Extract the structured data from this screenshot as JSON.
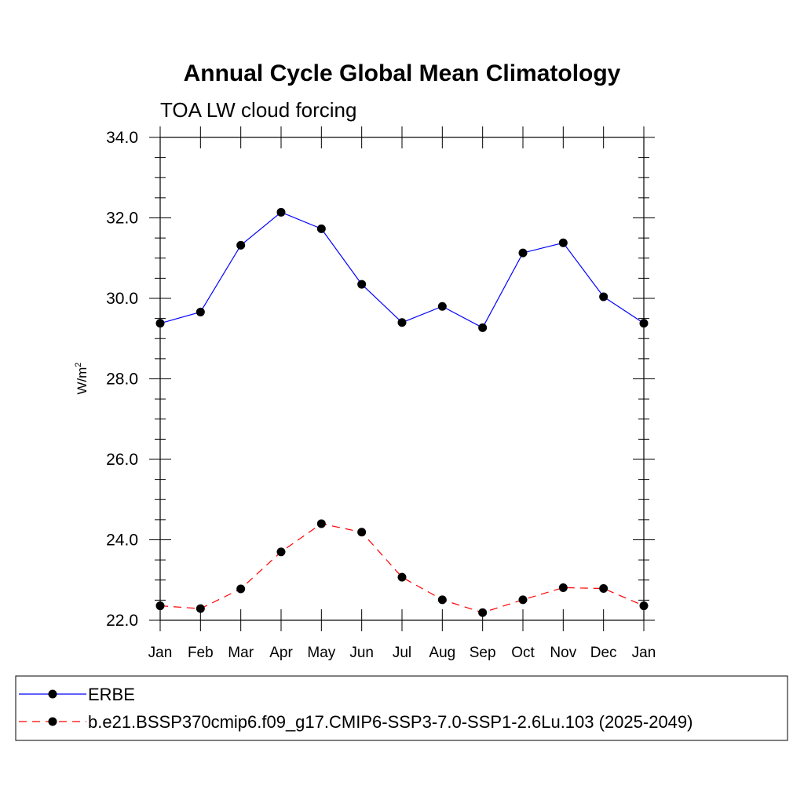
{
  "chart_data": {
    "type": "line",
    "title": "Annual Cycle Global Mean Climatology",
    "subtitle": "TOA LW cloud forcing",
    "ylabel": "W/m",
    "ylabel_sup": "2",
    "xlabel": "",
    "categories": [
      "Jan",
      "Feb",
      "Mar",
      "Apr",
      "May",
      "Jun",
      "Jul",
      "Aug",
      "Sep",
      "Oct",
      "Nov",
      "Dec",
      "Jan"
    ],
    "ylim": [
      22.0,
      34.0
    ],
    "yticks": [
      "22.0",
      "24.0",
      "26.0",
      "28.0",
      "30.0",
      "32.0",
      "34.0"
    ],
    "grid": false,
    "legend_position": "bottom",
    "series": [
      {
        "name": "ERBE",
        "color": "#0000ff",
        "dash": "solid",
        "marker": "circle",
        "values": [
          29.38,
          29.66,
          31.32,
          32.14,
          31.73,
          30.35,
          29.4,
          29.8,
          29.27,
          31.13,
          31.38,
          30.04,
          29.38
        ]
      },
      {
        "name": "b.e21.BSSP370cmip6.f09_g17.CMIP6-SSP3-7.0-SSP1-2.6Lu.103 (2025-2049)",
        "color": "#ff0000",
        "dash": "dashed",
        "marker": "circle",
        "values": [
          22.36,
          22.29,
          22.78,
          23.7,
          24.4,
          24.19,
          23.07,
          22.51,
          22.19,
          22.51,
          22.81,
          22.79,
          22.36
        ]
      }
    ]
  }
}
